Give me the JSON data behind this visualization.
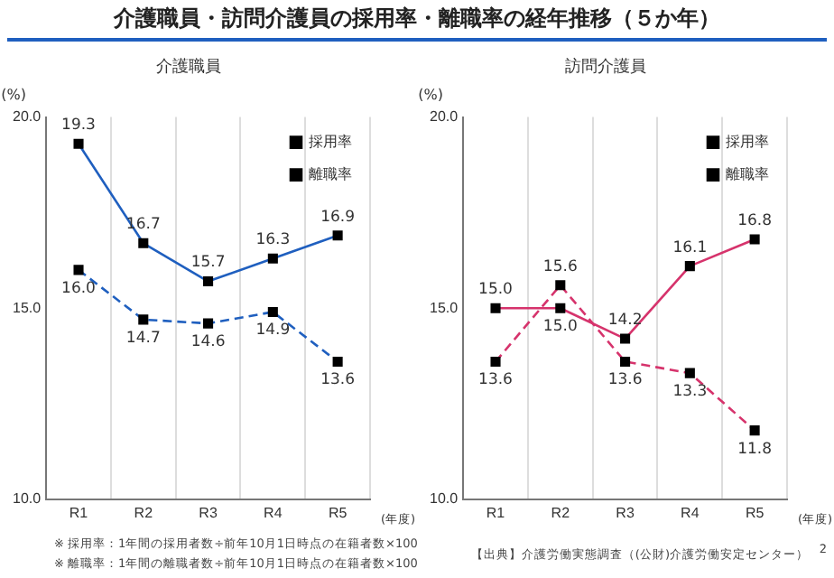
{
  "chart_data": [
    {
      "type": "line",
      "title": "介護職員・訪問介護員の採用率・離職率の経年推移（５か年）",
      "subtitle": "介護職員",
      "ylabel": "(%)",
      "xlabel": "(年度)",
      "categories": [
        "R1",
        "R2",
        "R3",
        "R4",
        "R5"
      ],
      "series": [
        {
          "name": "採用率",
          "color": "#1f5fbf",
          "line_style": "solid",
          "values": [
            19.3,
            16.7,
            15.7,
            16.3,
            16.9
          ],
          "value_labels": [
            "19.3",
            "16.7",
            "15.7",
            "16.3",
            "16.9"
          ]
        },
        {
          "name": "離職率",
          "color": "#1f5fbf",
          "line_style": "dashed",
          "values": [
            16.0,
            14.7,
            14.6,
            14.9,
            13.6
          ],
          "value_labels": [
            "16.0",
            "14.7",
            "14.6",
            "14.9",
            "13.6"
          ]
        }
      ],
      "ylim": [
        10,
        20
      ],
      "yticks": [
        {
          "value": 10,
          "label": "10.0"
        },
        {
          "value": 15,
          "label": "15.0"
        },
        {
          "value": 20,
          "label": "20.0"
        }
      ],
      "grid": "x",
      "legend": "top right",
      "marker": "square",
      "annotations": [
        "※ 採用率：1年間の採用者数÷前年10月1日時点の在籍者数×100",
        "※ 離職率：1年間の離職者数÷前年10月1日時点の在籍者数×100"
      ]
    },
    {
      "type": "line",
      "subtitle": "訪問介護員",
      "ylabel": "(%)",
      "xlabel": "(年度)",
      "categories": [
        "R1",
        "R2",
        "R3",
        "R4",
        "R5"
      ],
      "series": [
        {
          "name": "採用率",
          "color": "#d6336c",
          "line_style": "solid",
          "values": [
            15.0,
            15.0,
            14.2,
            16.1,
            16.8
          ],
          "value_labels": [
            "15.0",
            "15.0",
            "14.2",
            "16.1",
            "16.8"
          ]
        },
        {
          "name": "離職率",
          "color": "#d6336c",
          "line_style": "dashed",
          "values": [
            13.6,
            15.6,
            13.6,
            13.3,
            11.8
          ],
          "value_labels": [
            "13.6",
            "15.6",
            "13.6",
            "13.3",
            "11.8"
          ]
        }
      ],
      "ylim": [
        10,
        20
      ],
      "yticks": [
        {
          "value": 10,
          "label": "10.0"
        },
        {
          "value": 15,
          "label": "15.0"
        },
        {
          "value": 20,
          "label": "20.0"
        }
      ],
      "grid": "x",
      "legend": "top right",
      "marker": "square",
      "annotations": [
        "【出典】介護労働実態調査（(公財)介護労働安定センター）",
        "2"
      ]
    }
  ]
}
